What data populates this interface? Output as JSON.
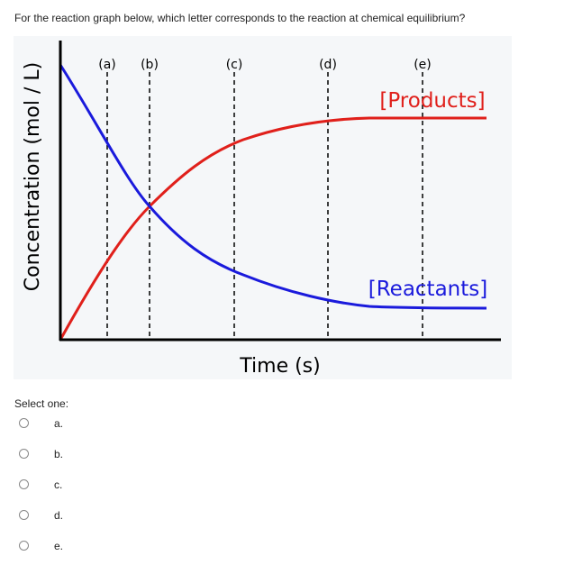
{
  "question": {
    "text": "For the reaction graph below, which letter corresponds to the reaction at chemical equilibrium?"
  },
  "figure": {
    "y_axis_label": "Concentration (mol / L)",
    "x_axis_label": "Time (s)",
    "markers": [
      "(a)",
      "(b)",
      "(c)",
      "(d)",
      "(e)"
    ],
    "curve_labels": {
      "products": "[Products]",
      "reactants": "[Reactants]"
    }
  },
  "answer": {
    "prompt": "Select one:",
    "options": [
      "a.",
      "b.",
      "c.",
      "d.",
      "e."
    ]
  }
}
